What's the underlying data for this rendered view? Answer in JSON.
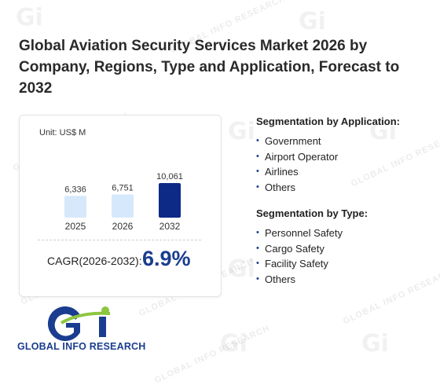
{
  "title": "Global Aviation Security Services Market 2026 by Company, Regions, Type and Application, Forecast to 2032",
  "chart_data": {
    "type": "bar",
    "unit_label": "Unit: US$ M",
    "categories": [
      "2025",
      "2026",
      "2032"
    ],
    "values": [
      6336,
      6751,
      10061
    ],
    "value_labels": [
      "6,336",
      "6,751",
      "10,061"
    ],
    "colors": [
      "#d6e8fb",
      "#d6e8fb",
      "#0d2a87"
    ],
    "ylim": [
      0,
      10061
    ]
  },
  "cagr": {
    "label": "CAGR(2026-2032):",
    "value": "6.9%"
  },
  "segments": {
    "application": {
      "title": "Segmentation by Application:",
      "items": [
        "Government",
        "Airport Operator",
        "Airlines",
        "Others"
      ]
    },
    "type": {
      "title": "Segmentation by Type:",
      "items": [
        "Personnel Safety",
        "Cargo Safety",
        "Facility Safety",
        "Others"
      ]
    }
  },
  "logo": {
    "text": "GLOBAL INFO RESEARCH"
  },
  "watermark": {
    "text": "GLOBAL INFO RESEARCH"
  },
  "accent_color": "#1a3d8f"
}
